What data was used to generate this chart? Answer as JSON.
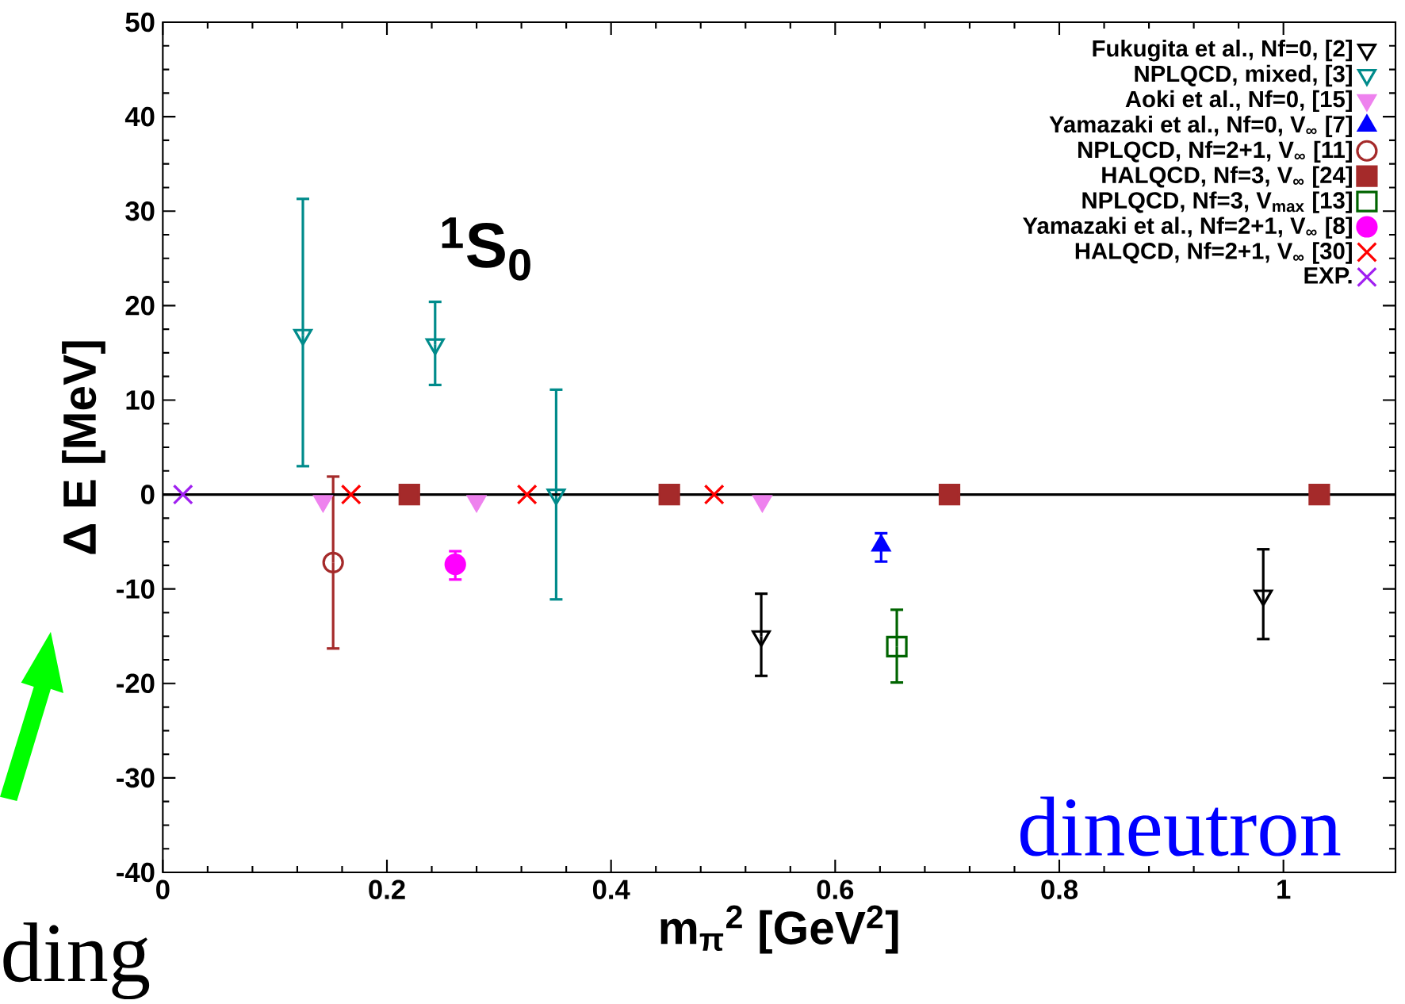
{
  "chart_data": {
    "type": "scatter",
    "xlabel": "m$_{π}$$^{2}$ [GeV$^{2}$]",
    "ylabel": "Δ E [MeV]",
    "xlim": [
      0,
      1.1
    ],
    "ylim": [
      -40,
      50
    ],
    "xticks": [
      0,
      0.2,
      0.4,
      0.6,
      0.8,
      1
    ],
    "yticks": [
      -40,
      -30,
      -20,
      -10,
      0,
      10,
      20,
      30,
      40,
      50
    ],
    "legend": "top right",
    "grid": false,
    "ref_lines": [
      {
        "axis": "y",
        "value": 0,
        "color": "#000000"
      }
    ],
    "annotations": [
      "$^{1}$S$_{0}$",
      "dineutron",
      "ding"
    ],
    "series": [
      {
        "name": "Fukugita et al., Nf=0, [2]",
        "color": "#000000",
        "marker": "triangle-down",
        "x": [
          0.534,
          0.982
        ],
        "values": [
          -15,
          -10.7
        ],
        "errors": [
          [
            -19.2,
            -10.5
          ],
          [
            -15.3,
            -5.8
          ]
        ]
      },
      {
        "name": "NPLQCD, mixed, [3]",
        "color": "#008b8b",
        "marker": "triangle-down",
        "x": [
          0.125,
          0.243,
          0.351
        ],
        "values": [
          16.9,
          15.9,
          0
        ],
        "errors": [
          [
            3.0,
            31.3
          ],
          [
            11.6,
            20.4
          ],
          [
            -11.1,
            11.1
          ]
        ]
      },
      {
        "name": "Aoki et al., Nf=0, [15]",
        "color": "#ee82ee",
        "marker": "triangle-down",
        "x": [
          0.143,
          0.28,
          0.535
        ],
        "values": [
          -0.7,
          -0.7,
          -0.7
        ]
      },
      {
        "name": "Yamazaki et al., Nf=0, V$_{∞}$ [7]",
        "color": "#0000ff",
        "marker": "triangle",
        "x": [
          0.641
        ],
        "values": [
          -5.4
        ],
        "errors": [
          [
            -7.1,
            -4.1
          ]
        ]
      },
      {
        "name": "NPLQCD, Nf=2+1, V$_{∞}$ [11]",
        "color": "#a52a2a",
        "marker": "circle",
        "x": [
          0.152
        ],
        "values": [
          -7.2
        ],
        "errors": [
          [
            -16.3,
            1.9
          ]
        ]
      },
      {
        "name": "HALQCD, Nf=3, V$_{∞}$ [24]",
        "color": "#a52a2a",
        "marker": "square",
        "x": [
          0.22,
          0.452,
          0.702,
          1.032
        ],
        "values": [
          0,
          0,
          0,
          0
        ]
      },
      {
        "name": "NPLQCD, Nf=3, V$_{max}$ [13]",
        "color": "#006400",
        "marker": "square",
        "x": [
          0.655
        ],
        "values": [
          -16.1
        ],
        "errors": [
          [
            -19.9,
            -12.2
          ]
        ]
      },
      {
        "name": "Yamazaki et al., Nf=2+1, V$_{∞}$ [8]",
        "color": "#ff00ff",
        "marker": "circle",
        "x": [
          0.261
        ],
        "values": [
          -7.4
        ],
        "errors": [
          [
            -9.0,
            -6.0
          ]
        ]
      },
      {
        "name": "HALQCD, Nf=2+1, V$_{∞}$ [30]",
        "color": "#ff0000",
        "marker": "cross",
        "x": [
          0.168,
          0.325,
          0.492
        ],
        "values": [
          0,
          0,
          0
        ]
      },
      {
        "name": "EXP.",
        "color": "#a020f0",
        "marker": "cross",
        "x": [
          0.018
        ],
        "values": [
          0
        ]
      }
    ]
  }
}
